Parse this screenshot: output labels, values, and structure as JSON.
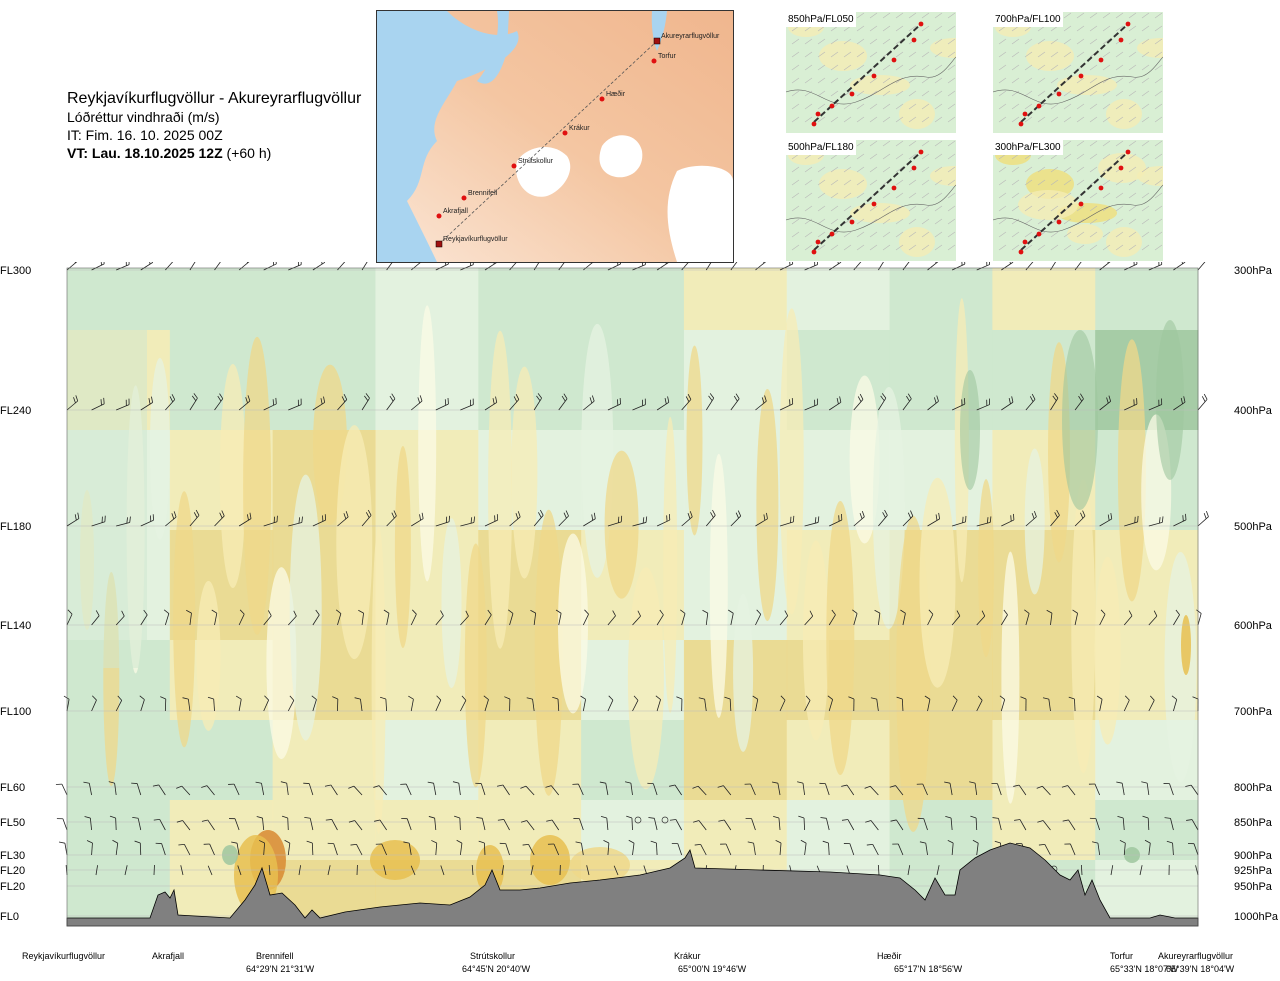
{
  "title": {
    "route": "Reykjavíkurflugvöllur - Akureyrarflugvöllur",
    "subtitle": "Lóðréttur vindhraði (m/s)",
    "issue_time": "IT: Fim. 16. 10. 2025 00Z",
    "valid_prefix": "VT: Lau. 18.10.2025 12Z",
    "valid_offset": "(+60 h)"
  },
  "route_map": {
    "waypoints": [
      "Akureyrarflugvöllur",
      "Torfur",
      "Hæðir",
      "Krákur",
      "Strútskollur",
      "Brennifell",
      "Akrafjall",
      "Reykjavíkurflugvöllur"
    ]
  },
  "mini_maps": [
    {
      "label": "850hPa/FL050"
    },
    {
      "label": "700hPa/FL100"
    },
    {
      "label": "500hPa/FL180"
    },
    {
      "label": "300hPa/FL300"
    }
  ],
  "chart_data": {
    "type": "heatmap",
    "title": "Lóðréttur vindhraði (m/s)",
    "x_axis": "route distance",
    "y_axis": "pressure level",
    "levels_left": [
      "FL300",
      "FL240",
      "FL180",
      "FL140",
      "FL100",
      "FL60",
      "FL50",
      "FL30",
      "FL20",
      "FL20",
      "FL0"
    ],
    "levels_right": [
      "300hPa",
      "400hPa",
      "500hPa",
      "600hPa",
      "700hPa",
      "800hPa",
      "850hPa",
      "900hPa",
      "925hPa",
      "950hPa",
      "1000hPa"
    ],
    "waypoints": [
      {
        "name": "Reykjavíkurflugvöllur",
        "coord": ""
      },
      {
        "name": "Akrafjall",
        "coord": ""
      },
      {
        "name": "Brennifell",
        "coord": "64°29'N 21°31'W"
      },
      {
        "name": "Strútskollur",
        "coord": "64°45'N 20°40'W"
      },
      {
        "name": "Krákur",
        "coord": "65°00'N 19°46'W"
      },
      {
        "name": "Hæðir",
        "coord": "65°17'N 18°56'W"
      },
      {
        "name": "Torfur",
        "coord": "65°33'N 18°07'W"
      },
      {
        "name": "Akureyrarflugvöllur",
        "coord": "65°39'N 18°04'W"
      }
    ],
    "colors": {
      "strong_down": "#9fc79f",
      "down": "#cfe8cf",
      "weak_down": "#e6f3e2",
      "neutral": "#fbfbe6",
      "weak_up": "#f7ecb5",
      "up": "#efd88a",
      "strong_up": "#e8c050",
      "max_up": "#d88a30",
      "terrain": "#808080"
    }
  }
}
